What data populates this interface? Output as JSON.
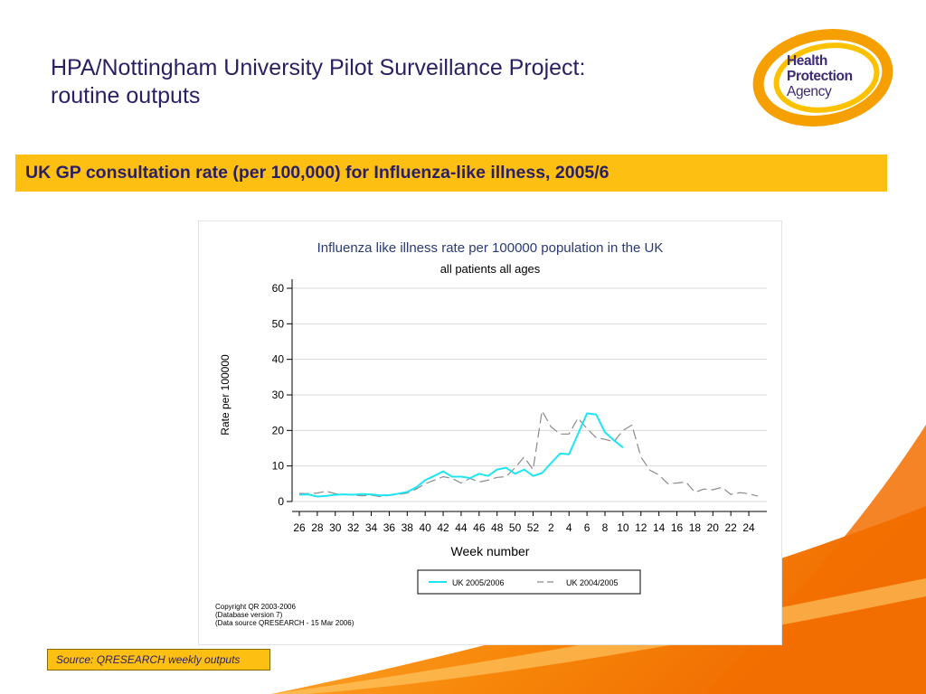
{
  "slide": {
    "title_line1": "HPA/Nottingham University Pilot Surveillance Project:",
    "title_line2": "routine outputs",
    "banner": "UK GP consultation rate (per 100,000) for Influenza-like illness, 2005/6",
    "source": "Source: QRESEARCH weekly outputs"
  },
  "logo": {
    "line1": "Health",
    "line2": "Protection",
    "line3": "Agency"
  },
  "colors": {
    "title_text": "#2a1f63",
    "banner_bg": "#fdbf12",
    "logo_orange": "#f5a000",
    "swoosh_orange": "#f47b00",
    "series_2005_2006": "#1ee6f0",
    "series_2004_2005": "#8a8a8a"
  },
  "chart_data": {
    "type": "line",
    "title": "Influenza like illness rate per 100000 population in the UK",
    "subtitle": "all patients all ages",
    "xlabel": "Week number",
    "ylabel": "Rate per 100000",
    "ylim": [
      0,
      60
    ],
    "yticks": [
      0,
      10,
      20,
      30,
      40,
      50,
      60
    ],
    "x_tick_labels": [
      "26",
      "28",
      "30",
      "32",
      "34",
      "36",
      "38",
      "40",
      "42",
      "44",
      "46",
      "48",
      "50",
      "52",
      "2",
      "4",
      "6",
      "8",
      "10",
      "12",
      "14",
      "16",
      "18",
      "20",
      "22",
      "24"
    ],
    "grid": true,
    "legend_position": "bottom",
    "x": [
      "26",
      "27",
      "28",
      "29",
      "30",
      "31",
      "32",
      "33",
      "34",
      "35",
      "36",
      "37",
      "38",
      "39",
      "40",
      "41",
      "42",
      "43",
      "44",
      "45",
      "46",
      "47",
      "48",
      "49",
      "50",
      "51",
      "52",
      "1",
      "2",
      "3",
      "4",
      "5",
      "6",
      "7",
      "8",
      "9",
      "10",
      "11",
      "12",
      "13",
      "14",
      "15",
      "16",
      "17",
      "18",
      "19",
      "20",
      "21",
      "22",
      "23",
      "24",
      "25"
    ],
    "series": [
      {
        "name": "UK   2005/2006",
        "style": "solid",
        "values": [
          1.9,
          2.0,
          1.4,
          1.6,
          1.9,
          2.0,
          1.9,
          2.1,
          2.0,
          1.7,
          1.8,
          2.2,
          2.7,
          4.0,
          6.0,
          7.2,
          8.5,
          7.0,
          7.0,
          6.6,
          7.8,
          7.2,
          9.0,
          9.5,
          7.8,
          9.0,
          7.2,
          8.0,
          10.8,
          13.5,
          13.3,
          19.0,
          24.8,
          24.5,
          19.5,
          17.2,
          15.2,
          null,
          null,
          null,
          null,
          null,
          null,
          null,
          null,
          null,
          null,
          null,
          null,
          null,
          null,
          null
        ]
      },
      {
        "name": "UK   2004/2005",
        "style": "dashed",
        "values": [
          2.3,
          2.2,
          2.4,
          2.9,
          2.2,
          2.0,
          1.8,
          1.6,
          1.8,
          1.4,
          1.7,
          2.0,
          2.4,
          3.5,
          5.0,
          6.0,
          7.0,
          6.5,
          5.2,
          6.5,
          5.5,
          6.0,
          6.8,
          7.0,
          9.5,
          12.5,
          9.0,
          25.5,
          21.0,
          19.0,
          19.0,
          23.5,
          20.5,
          18.0,
          17.5,
          16.8,
          20.0,
          21.5,
          12.5,
          8.8,
          7.5,
          5.0,
          5.2,
          5.5,
          2.6,
          3.5,
          3.3,
          4.0,
          2.0,
          2.5,
          2.2,
          1.5
        ]
      }
    ],
    "annotations": [
      "Copyright QR 2003-2006",
      "(Database version 7)",
      "(Data source QRESEARCH - 15 Mar 2006)"
    ]
  }
}
